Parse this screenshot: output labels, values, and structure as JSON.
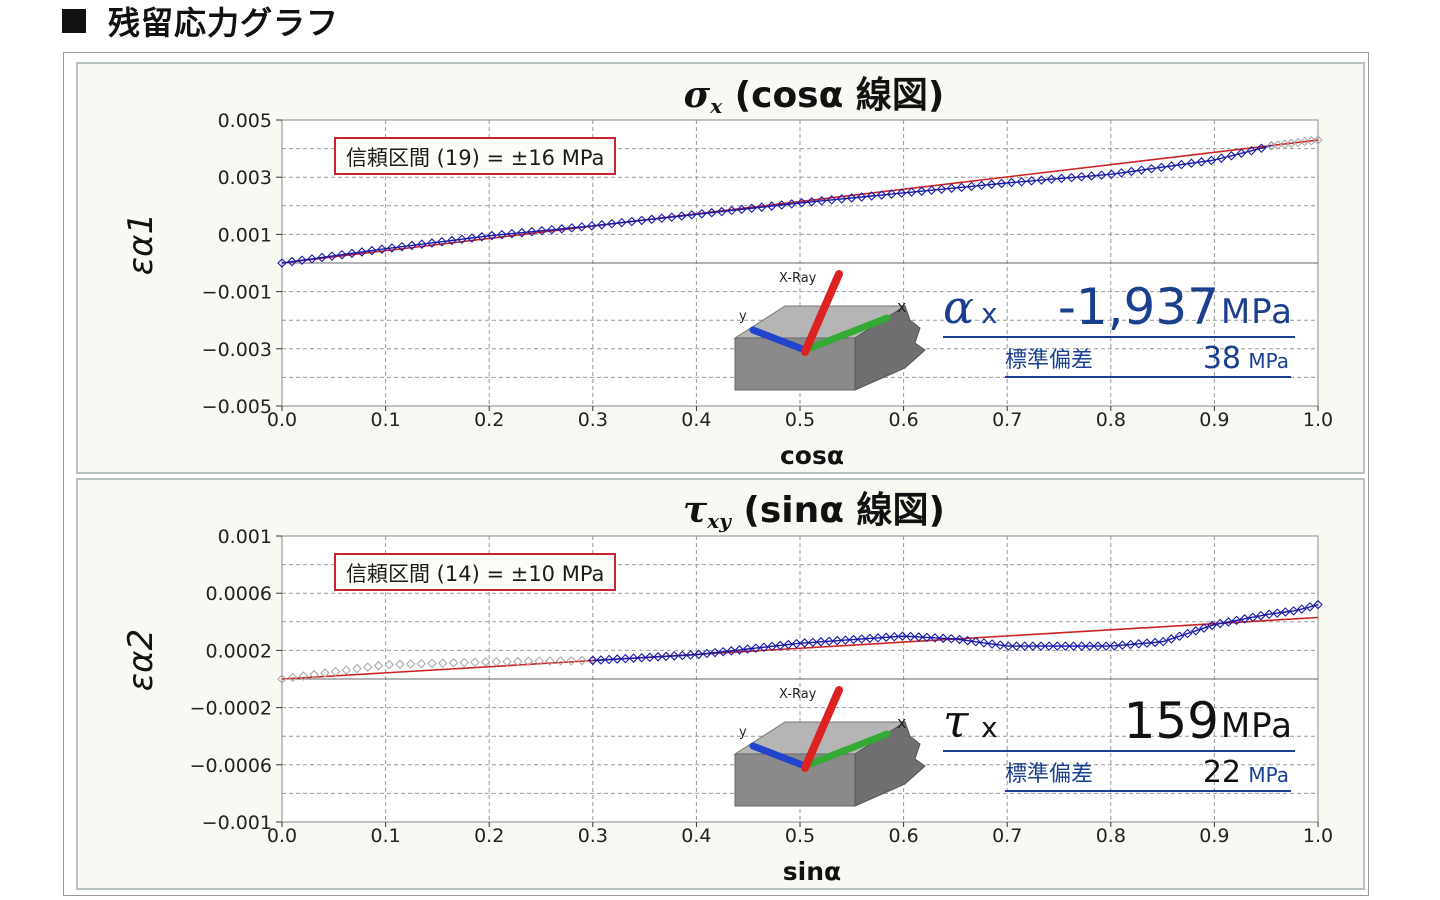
{
  "page": {
    "title": "残留応力グラフ"
  },
  "colors": {
    "frame": "#b8c2c2",
    "plot_bg": "#ffffff",
    "grid": "#999999",
    "data_points": "#1a1aa8",
    "excluded_points": "#aaaaaa",
    "fit_line": "#cc2222",
    "ci_border": "#c8232f",
    "result_text": "#1b3f8f",
    "xray_beam": "#dd2222",
    "axis_y": "#2244cc",
    "axis_x": "#33aa33",
    "specimen": "#8a8a8a"
  },
  "charts": [
    {
      "title_symbol": "σ",
      "title_subscript": "x",
      "title_rest": " (cosα 線図)",
      "ci_label": "信頼区間 (19) = ±16 MPa",
      "result": {
        "symbol": "α",
        "axis": "x",
        "value": "-1,937",
        "unit": "MPa",
        "sd_label": "標準偏差",
        "sd_value": "38",
        "sd_unit": "MPa"
      },
      "diagram": {
        "beam_label": "X-Ray",
        "y_label": "y",
        "x_label": "x"
      }
    },
    {
      "title_symbol": "τ",
      "title_subscript": "xy",
      "title_rest": " (sinα 線図)",
      "ci_label": "信頼区間 (14) = ±10 MPa",
      "result": {
        "symbol": "τ",
        "axis": "x",
        "value": "159",
        "unit": "MPa",
        "sd_label": "標準偏差",
        "sd_value": "22",
        "sd_unit": "MPa"
      },
      "diagram": {
        "beam_label": "X-Ray",
        "y_label": "y",
        "x_label": "x"
      }
    }
  ],
  "chart_data": [
    {
      "type": "scatter",
      "title": "σx (cosα 線図)",
      "xlabel": "cosα",
      "ylabel": "εα1",
      "xlim": [
        0.0,
        1.0
      ],
      "ylim": [
        -0.005,
        0.005
      ],
      "x_ticks": [
        "0.0",
        "0.1",
        "0.2",
        "0.3",
        "0.4",
        "0.5",
        "0.6",
        "0.7",
        "0.8",
        "0.9",
        "1.0"
      ],
      "y_ticks": [
        {
          "value": 0.005,
          "label": "0.005"
        },
        {
          "value": 0.003,
          "label": "0.003"
        },
        {
          "value": 0.001,
          "label": "0.001"
        },
        {
          "value": -0.001,
          "label": "−0.001"
        },
        {
          "value": -0.003,
          "label": "−0.003"
        },
        {
          "value": -0.005,
          "label": "−0.005"
        }
      ],
      "grid": true,
      "fit_line": {
        "x": [
          0.0,
          1.0
        ],
        "y": [
          0.0,
          0.0043
        ]
      },
      "series": [
        {
          "role": "measured",
          "x_range": [
            0.0,
            0.955
          ],
          "count": 100,
          "x": [
            0.0,
            0.1,
            0.2,
            0.3,
            0.4,
            0.5,
            0.6,
            0.7,
            0.8,
            0.9,
            0.955
          ],
          "y": [
            0.0,
            0.0005,
            0.00095,
            0.0013,
            0.0017,
            0.0021,
            0.00245,
            0.0028,
            0.0031,
            0.0036,
            0.0041
          ]
        },
        {
          "role": "excluded",
          "x_range": [
            0.955,
            1.0
          ],
          "count": 8,
          "x": [
            0.955,
            1.0
          ],
          "y": [
            0.0041,
            0.0043
          ]
        }
      ]
    },
    {
      "type": "scatter",
      "title": "τxy (sinα 線図)",
      "xlabel": "sinα",
      "ylabel": "εα2",
      "xlim": [
        0.0,
        1.0
      ],
      "ylim": [
        -0.001,
        0.001
      ],
      "x_ticks": [
        "0.0",
        "0.1",
        "0.2",
        "0.3",
        "0.4",
        "0.5",
        "0.6",
        "0.7",
        "0.8",
        "0.9",
        "1.0"
      ],
      "y_ticks": [
        {
          "value": 0.001,
          "label": "0.001"
        },
        {
          "value": 0.0006,
          "label": "0.0006"
        },
        {
          "value": 0.0002,
          "label": "0.0002"
        },
        {
          "value": -0.0002,
          "label": "−0.0002"
        },
        {
          "value": -0.0006,
          "label": "−0.0006"
        },
        {
          "value": -0.001,
          "label": "−0.001"
        }
      ],
      "grid": true,
      "fit_line": {
        "x": [
          0.0,
          1.0
        ],
        "y": [
          0.0,
          0.00043
        ]
      },
      "series": [
        {
          "role": "excluded",
          "x_range": [
            0.0,
            0.3
          ],
          "count": 30,
          "x": [
            0.0,
            0.1,
            0.2,
            0.3
          ],
          "y": [
            0.0,
            0.0001,
            0.00012,
            0.00013
          ]
        },
        {
          "role": "measured",
          "x_range": [
            0.3,
            1.0
          ],
          "count": 90,
          "x": [
            0.3,
            0.4,
            0.5,
            0.6,
            0.65,
            0.7,
            0.8,
            0.85,
            0.9,
            0.95,
            0.98,
            1.0
          ],
          "y": [
            0.00013,
            0.00017,
            0.00025,
            0.0003,
            0.00028,
            0.00023,
            0.00023,
            0.00026,
            0.00038,
            0.00045,
            0.00048,
            0.00052
          ]
        }
      ]
    }
  ]
}
